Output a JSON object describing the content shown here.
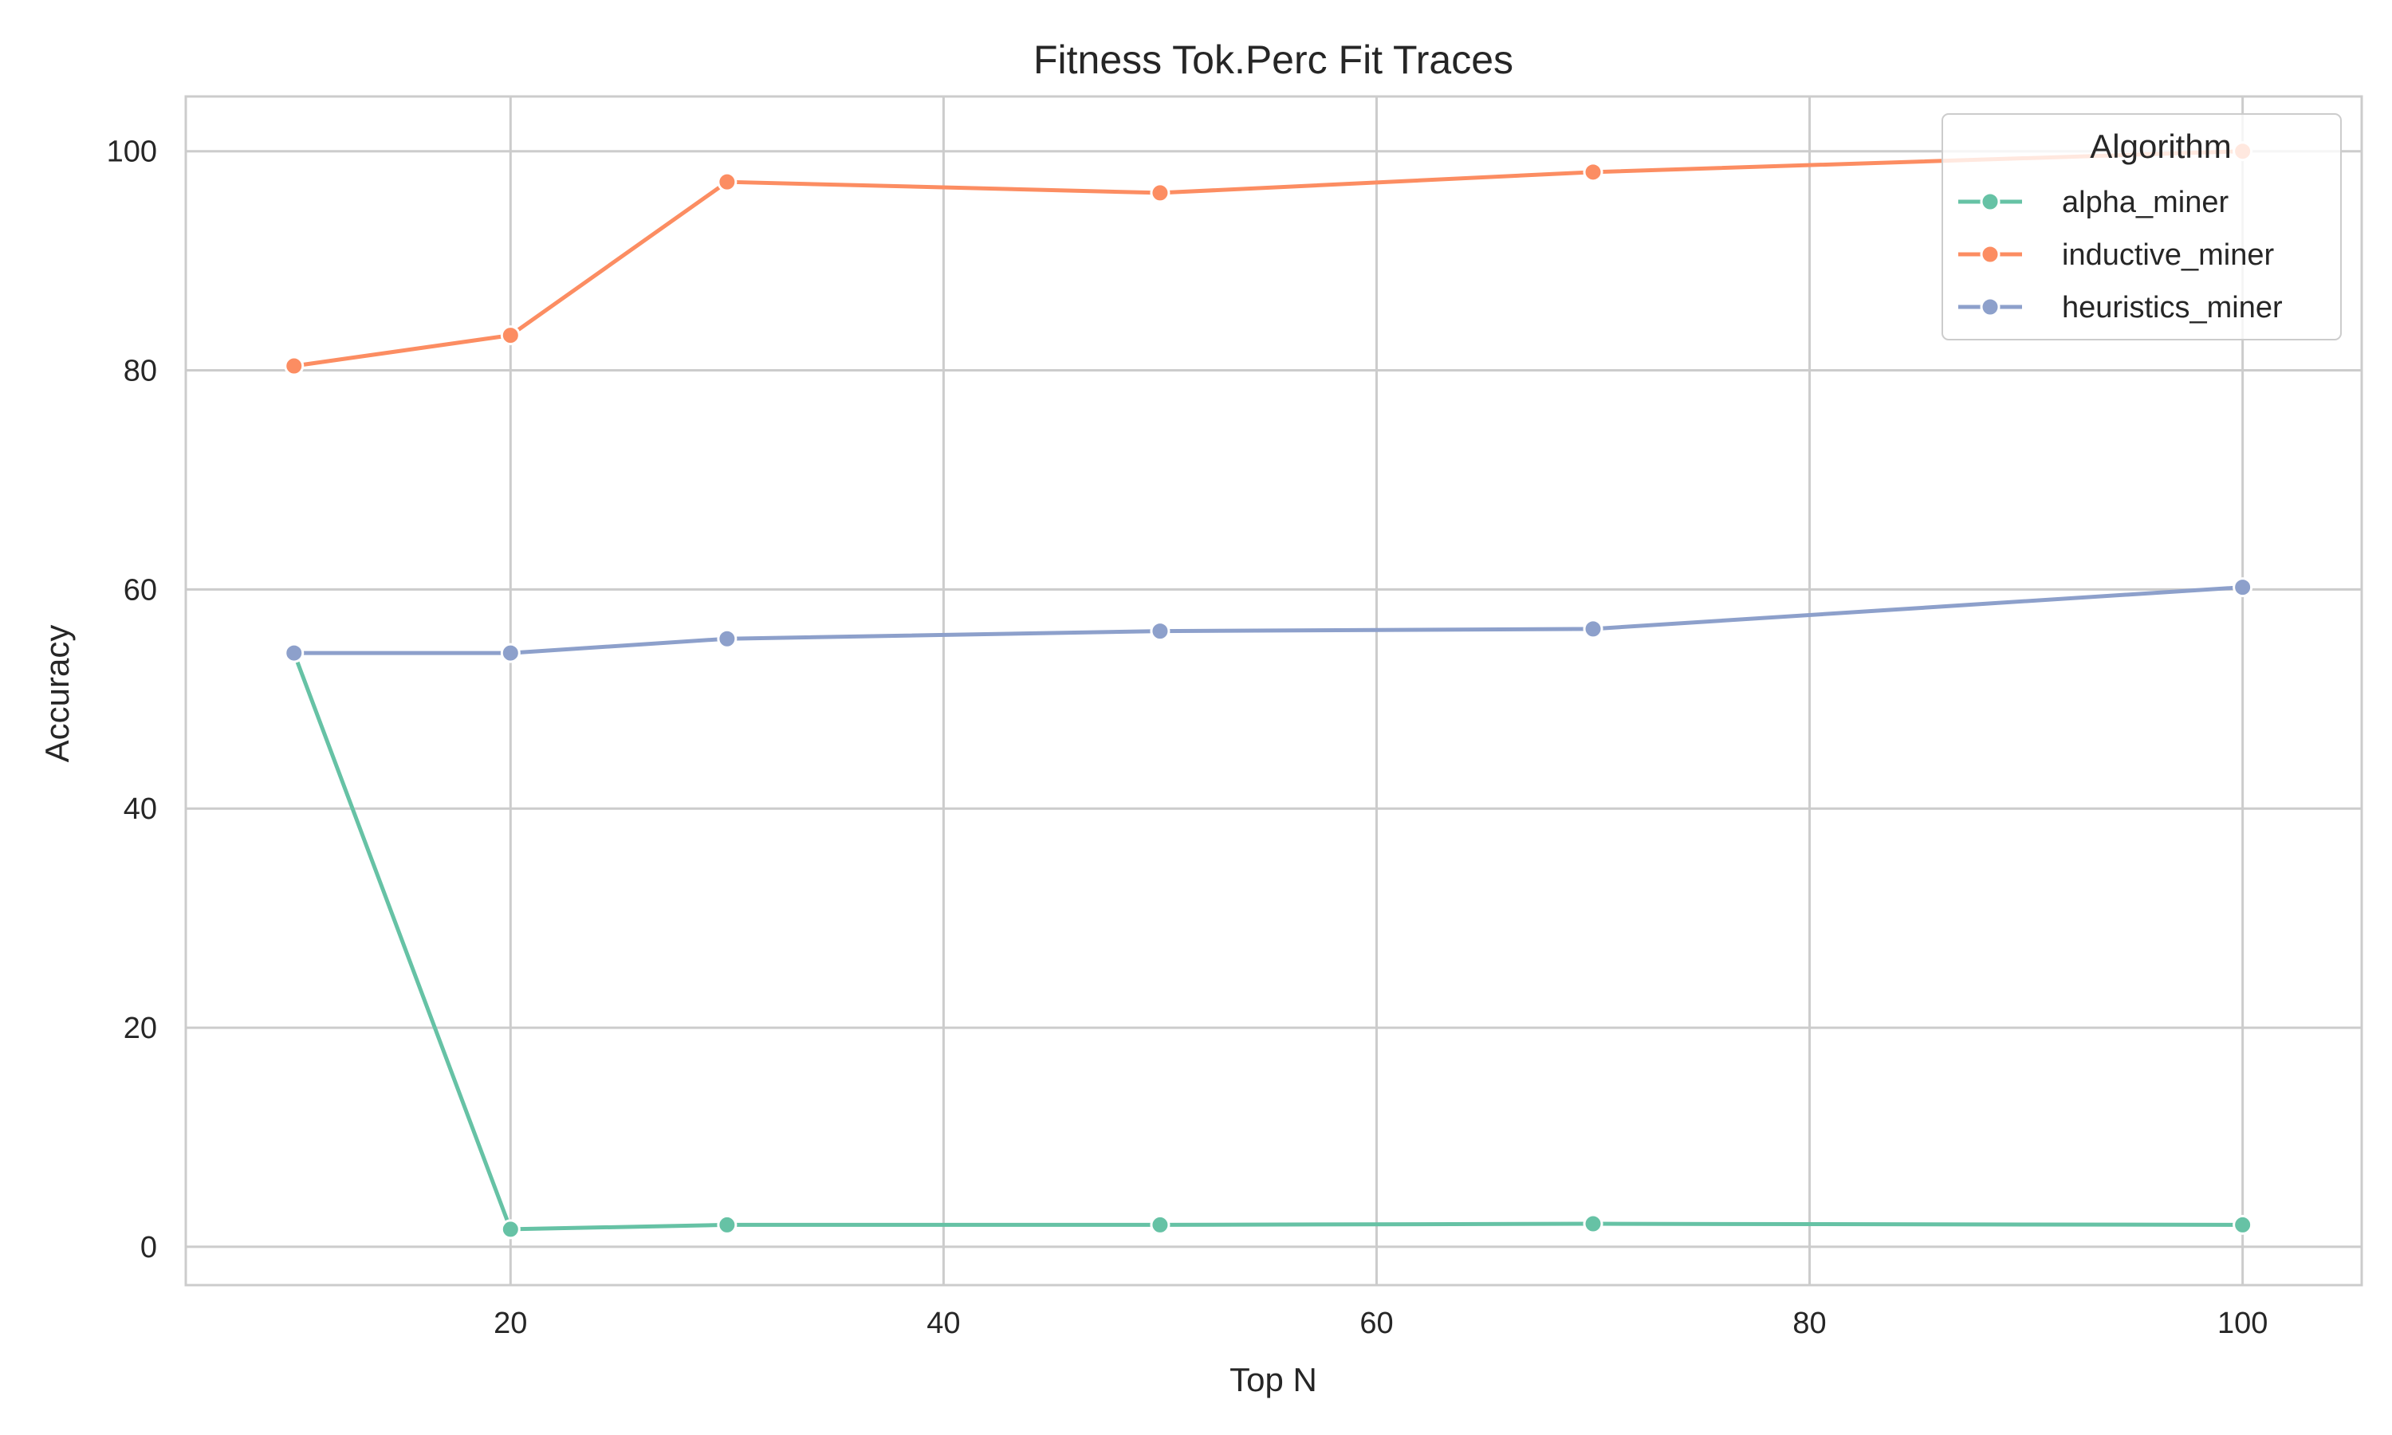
{
  "chart_data": {
    "type": "line",
    "title": "Fitness Tok.Perc Fit Traces",
    "xlabel": "Top N",
    "ylabel": "Accuracy",
    "x": [
      10,
      20,
      30,
      50,
      70,
      100
    ],
    "xlim": [
      5,
      105.5
    ],
    "ylim": [
      -3.5,
      105
    ],
    "xticks": [
      "20",
      "40",
      "60",
      "80",
      "100"
    ],
    "yticks": [
      "0",
      "20",
      "40",
      "60",
      "80",
      "100"
    ],
    "grid": true,
    "legend": {
      "title": "Algorithm",
      "position": "top-right"
    },
    "series": [
      {
        "name": "alpha_miner",
        "color": "#66c2a5",
        "values": [
          54.2,
          1.6,
          2.0,
          2.0,
          2.1,
          2.0
        ]
      },
      {
        "name": "inductive_miner",
        "color": "#fc8d62",
        "values": [
          80.4,
          83.2,
          97.2,
          96.2,
          98.1,
          100.0
        ]
      },
      {
        "name": "heuristics_miner",
        "color": "#8da0cb",
        "values": [
          54.2,
          54.2,
          55.5,
          56.2,
          56.4,
          60.2
        ]
      }
    ]
  }
}
